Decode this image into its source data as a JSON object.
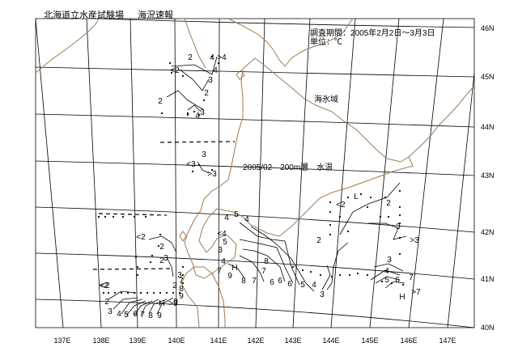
{
  "header": {
    "org": "北海道立水産試験場",
    "product": "海況速報",
    "period": "調査期間：2005年2月2日～3月3日",
    "unit": "単位：℃"
  },
  "map": {
    "caption": "2005/02　200m層　水温",
    "ice_label": "海氷域",
    "lon_labels": [
      "137E",
      "138E",
      "139E",
      "140E",
      "141E",
      "142E",
      "143E",
      "144E",
      "145E",
      "146E",
      "147E"
    ],
    "lat_labels": [
      "46N",
      "45N",
      "44N",
      "43N",
      "42N",
      "41N",
      "40N"
    ]
  },
  "isotherms": [
    {
      "t": "2"
    },
    {
      "t": "<2"
    },
    {
      "t": "4"
    },
    {
      "t": ">4"
    },
    {
      "t": "3"
    },
    {
      "t": "4"
    },
    {
      "t": "2"
    },
    {
      "t": "2"
    },
    {
      "t": "3"
    },
    {
      "t": "4"
    },
    {
      "t": "3"
    },
    {
      "t": "<3"
    },
    {
      "t": ">3"
    },
    {
      "t": "L"
    },
    {
      "t": "<2"
    },
    {
      "t": "2"
    },
    {
      "t": "3"
    },
    {
      "t": "2"
    },
    {
      "t": ">3"
    },
    {
      "t": "3"
    },
    {
      "t": "4"
    },
    {
      "t": "5"
    },
    {
      "t": "6"
    },
    {
      "t": "7"
    },
    {
      "t": "H"
    },
    {
      "t": ">7"
    },
    {
      "t": "4"
    },
    {
      "t": "5"
    },
    {
      "t": "4"
    },
    {
      "t": "<4"
    },
    {
      "t": "5"
    },
    {
      "t": "3"
    },
    {
      "t": "4"
    },
    {
      "t": "7"
    },
    {
      "t": "H"
    },
    {
      "t": "8"
    },
    {
      "t": "7"
    },
    {
      "t": "6"
    },
    {
      "t": "9"
    },
    {
      "t": "8"
    },
    {
      "t": "7"
    },
    {
      "t": "6"
    },
    {
      "t": "6"
    },
    {
      "t": "5"
    },
    {
      "t": "4"
    },
    {
      "t": "3"
    },
    {
      "t": "<2"
    },
    {
      "t": "2"
    },
    {
      "t": "2"
    },
    {
      "t": "3"
    },
    {
      "t": "4"
    },
    {
      "t": "5"
    },
    {
      "t": "6"
    },
    {
      "t": "7"
    },
    {
      "t": "8"
    },
    {
      "t": "9"
    },
    {
      "t": "7"
    },
    {
      "t": "8"
    },
    {
      "t": "9"
    },
    {
      "t": "9"
    },
    {
      "t": "H"
    },
    {
      "t": ">9"
    },
    {
      "t": "<2"
    },
    {
      "t": "2"
    },
    {
      "t": "3"
    },
    {
      "t": "<2"
    },
    {
      "t": "2"
    },
    {
      "t": "3"
    }
  ],
  "colors": {
    "grid": "#000000",
    "coast": "#a07850",
    "contour": "#000000",
    "ice_edge": "#000000"
  }
}
